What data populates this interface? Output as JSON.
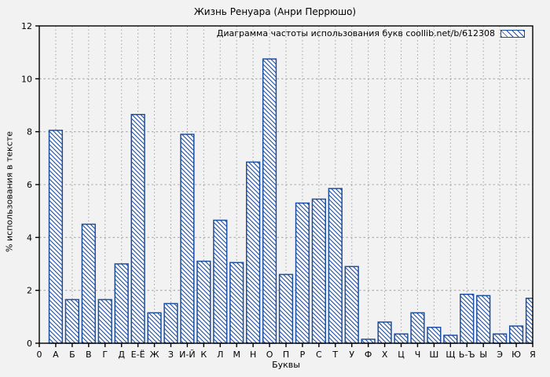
{
  "chart_data": {
    "type": "bar",
    "title": "Жизнь Ренуара (Анри Перрюшо)",
    "legend": "Диаграмма частоты использования букв coollib.net/b/612308",
    "xlabel": "Буквы",
    "ylabel": "% использования в тексте",
    "ylim": [
      0,
      12
    ],
    "yticks": [
      0,
      2,
      4,
      6,
      8,
      10,
      12
    ],
    "grid": "dotted, both axes",
    "legend_position": "top-right-inside",
    "categories": [
      "0",
      "А",
      "Б",
      "В",
      "Г",
      "Д",
      "Е-Ё",
      "Ж",
      "З",
      "И-Й",
      "К",
      "Л",
      "М",
      "Н",
      "О",
      "П",
      "Р",
      "С",
      "Т",
      "У",
      "Ф",
      "Х",
      "Ц",
      "Ч",
      "Ш",
      "Щ",
      "Ь-Ъ",
      "Ы",
      "Э",
      "Ю",
      "Я"
    ],
    "values": [
      0,
      8.05,
      1.65,
      4.5,
      1.65,
      3.0,
      8.65,
      1.15,
      1.5,
      7.9,
      3.1,
      4.65,
      3.05,
      6.85,
      10.75,
      2.6,
      5.3,
      5.45,
      5.85,
      2.9,
      0.15,
      0.8,
      0.35,
      1.15,
      0.6,
      0.3,
      1.85,
      1.8,
      0.35,
      0.65,
      1.7
    ],
    "bar_style": {
      "hatch": "\\\\",
      "fill": "#ffffff"
    },
    "colors": {
      "bar": "#1c4ea0",
      "background": "#f2f2f2",
      "grid": "#a9a9a9",
      "axis": "#000000"
    }
  }
}
